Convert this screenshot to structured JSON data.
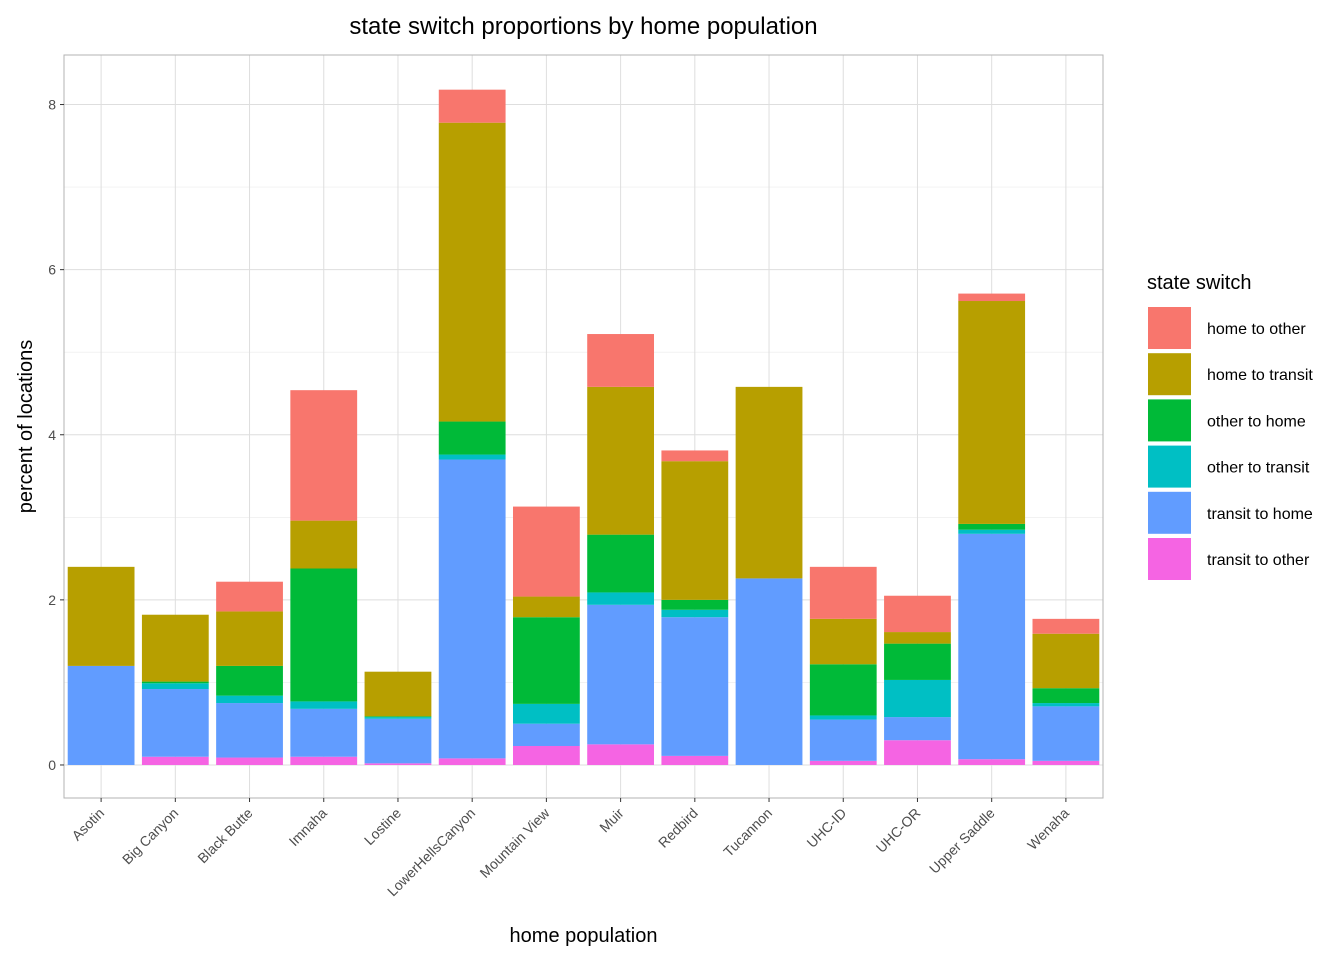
{
  "chart_data": {
    "type": "bar",
    "stacked": true,
    "title": "state switch proportions by home population",
    "xlabel": "home population",
    "ylabel": "percent of locations",
    "ylim": [
      -0.4,
      8.6
    ],
    "yticks": [
      0,
      2,
      4,
      6,
      8
    ],
    "grid": true,
    "legend_position": "right",
    "legend_title": "state switch",
    "categories": [
      "Asotin",
      "Big Canyon",
      "Black Butte",
      "Imnaha",
      "Lostine",
      "LowerHellsCanyon",
      "Mountain View",
      "Muir",
      "Redbird",
      "Tucannon",
      "UHC-ID",
      "UHC-OR",
      "Upper Saddle",
      "Wenaha"
    ],
    "series": [
      {
        "name": "transit to other",
        "color": "#F564E3",
        "values": [
          0,
          0.1,
          0.09,
          0.1,
          0.02,
          0.08,
          0.23,
          0.25,
          0.11,
          0,
          0.05,
          0.3,
          0.07,
          0.05
        ]
      },
      {
        "name": "transit to home",
        "color": "#619CFF",
        "values": [
          1.2,
          0.82,
          0.66,
          0.58,
          0.54,
          3.62,
          0.27,
          1.69,
          1.68,
          2.26,
          0.5,
          0.28,
          2.73,
          0.66
        ]
      },
      {
        "name": "other to transit",
        "color": "#00BFC4",
        "values": [
          0,
          0.07,
          0.09,
          0.09,
          0.02,
          0.06,
          0.24,
          0.15,
          0.09,
          0,
          0.05,
          0.45,
          0.05,
          0.04
        ]
      },
      {
        "name": "other to home",
        "color": "#00BA38",
        "values": [
          0,
          0.02,
          0.36,
          1.61,
          0.01,
          0.4,
          1.05,
          0.7,
          0.12,
          0,
          0.62,
          0.44,
          0.07,
          0.18
        ]
      },
      {
        "name": "home to transit",
        "color": "#B79F00",
        "values": [
          1.2,
          0.81,
          0.66,
          0.58,
          0.54,
          3.62,
          0.25,
          1.79,
          1.68,
          2.32,
          0.55,
          0.14,
          2.7,
          0.66
        ]
      },
      {
        "name": "home to other",
        "color": "#F8766D",
        "values": [
          0,
          0,
          0.36,
          1.58,
          0,
          0.4,
          1.09,
          0.64,
          0.13,
          0,
          0.63,
          0.44,
          0.09,
          0.18
        ]
      }
    ],
    "legend_order": [
      "home to other",
      "home to transit",
      "other to home",
      "other to transit",
      "transit to home",
      "transit to other"
    ]
  }
}
